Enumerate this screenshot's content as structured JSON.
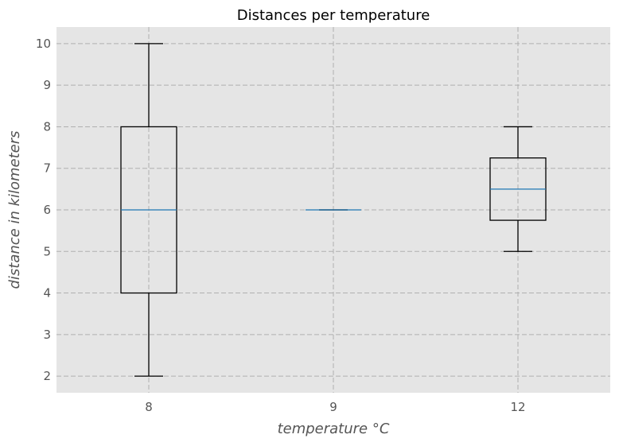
{
  "chart_data": {
    "type": "box",
    "title": "Distances per temperature",
    "xlabel": "temperature °C",
    "ylabel": "distance in kilometers",
    "categories": [
      "8",
      "9",
      "12"
    ],
    "boxes": [
      {
        "category": "8",
        "whisker_low": 2,
        "q1": 4,
        "median": 6,
        "q3": 8,
        "whisker_high": 10
      },
      {
        "category": "9",
        "whisker_low": 6,
        "q1": 6,
        "median": 6,
        "q3": 6,
        "whisker_high": 6
      },
      {
        "category": "12",
        "whisker_low": 5,
        "q1": 5.75,
        "median": 6.5,
        "q3": 7.25,
        "whisker_high": 8
      }
    ],
    "yticks": [
      2,
      3,
      4,
      5,
      6,
      7,
      8,
      9,
      10
    ],
    "ylim": [
      1.6,
      10.4
    ],
    "grid": true,
    "colors": {
      "plot_background": "#e5e5e5",
      "grid": "#b0b0b0",
      "box": "#000000",
      "median": "#1f77b4"
    }
  }
}
